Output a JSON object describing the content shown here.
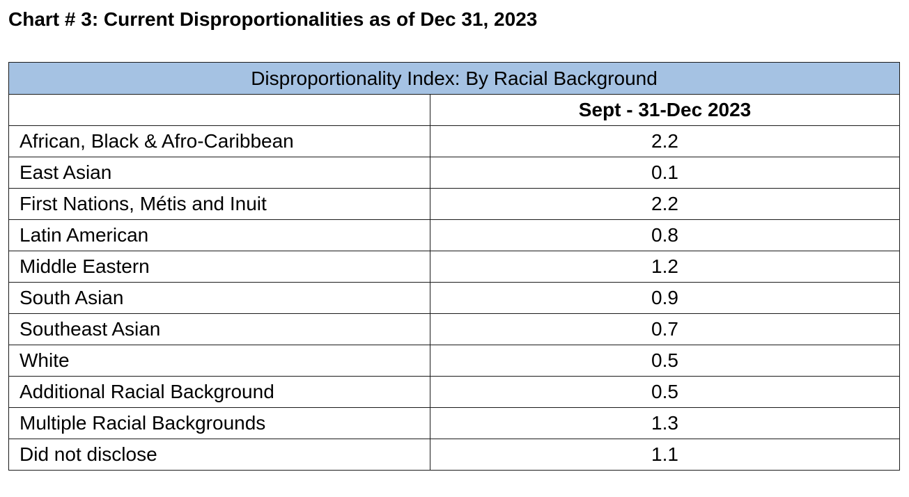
{
  "title": "Chart # 3: Current Disproportionalities as of Dec 31, 2023",
  "colors": {
    "header_fill": "#a5c2e3",
    "border": "#1a1a1a"
  },
  "chart_data": {
    "type": "table",
    "caption": "Disproportionality Index:  By Racial Background",
    "columns": [
      "",
      "Sept - 31-Dec 2023"
    ],
    "rows": [
      {
        "label": "African, Black & Afro-Caribbean",
        "value": "2.2"
      },
      {
        "label": "East Asian",
        "value": "0.1"
      },
      {
        "label": "First Nations, Métis and Inuit",
        "value": "2.2"
      },
      {
        "label": "Latin American",
        "value": "0.8"
      },
      {
        "label": "Middle Eastern",
        "value": "1.2"
      },
      {
        "label": "South Asian",
        "value": "0.9"
      },
      {
        "label": "Southeast Asian",
        "value": "0.7"
      },
      {
        "label": "White",
        "value": "0.5"
      },
      {
        "label": "Additional Racial Background",
        "value": "0.5"
      },
      {
        "label": "Multiple Racial Backgrounds",
        "value": "1.3"
      },
      {
        "label": "Did not disclose",
        "value": "1.1"
      }
    ]
  }
}
